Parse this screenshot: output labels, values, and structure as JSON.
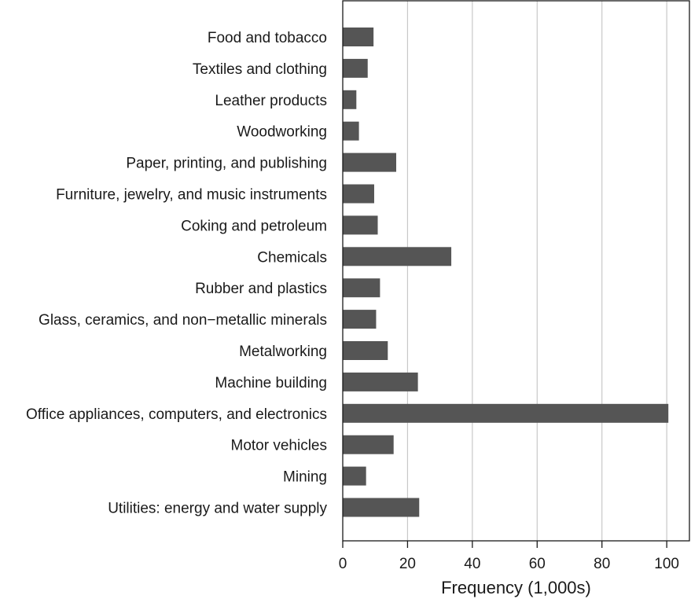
{
  "chart_data": {
    "type": "bar",
    "orientation": "horizontal",
    "categories": [
      "Food and tobacco",
      "Textiles and clothing",
      "Leather products",
      "Woodworking",
      "Paper, printing, and publishing",
      "Furniture, jewelry, and music instruments",
      "Coking and petroleum",
      "Chemicals",
      "Rubber and plastics",
      "Glass, ceramics, and non−metallic minerals",
      "Metalworking",
      "Machine building",
      "Office appliances, computers, and electronics",
      "Motor vehicles",
      "Mining",
      "Utilities: energy and water supply"
    ],
    "values": [
      9.5,
      7.7,
      4.2,
      5.0,
      16.5,
      9.7,
      10.8,
      33.5,
      11.5,
      10.3,
      13.9,
      23.2,
      100.5,
      15.7,
      7.2,
      23.6
    ],
    "xlabel": "Frequency (1,000s)",
    "ylabel": "",
    "xlim": [
      0,
      107
    ],
    "xticks": [
      0,
      20,
      40,
      60,
      80,
      100
    ],
    "grid": "vertical",
    "colors": {
      "bar": "#555555",
      "grid": "#c8c8c8",
      "axis": "#1a1a1a"
    }
  }
}
